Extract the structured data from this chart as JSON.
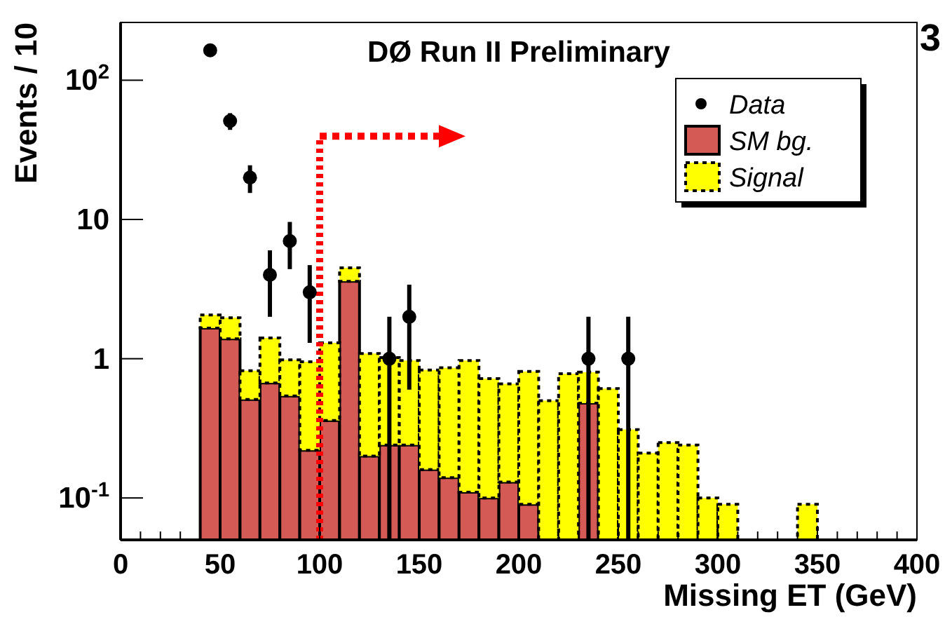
{
  "chart_data": {
    "type": "bar",
    "title": "DØ Run II Preliminary",
    "xlabel": "Missing ET (GeV)",
    "ylabel": "Events / 10",
    "stacked": true,
    "log": "y",
    "legend": "top right",
    "grid": false,
    "x": [
      45,
      55,
      65,
      75,
      85,
      95,
      105,
      115,
      125,
      135,
      145,
      155,
      165,
      175,
      185,
      195,
      205,
      215,
      225,
      235,
      245,
      255,
      265,
      275,
      285,
      295,
      305,
      315,
      325,
      335,
      345
    ],
    "series": [
      {
        "name": "Data",
        "type": "scatter",
        "color": "#000000",
        "marker": "circle",
        "x": [
          45,
          55,
          65,
          75,
          85,
          95,
          135,
          145,
          235,
          255
        ],
        "values": [
          164,
          51,
          20,
          4,
          7,
          3,
          1,
          2,
          1,
          1
        ],
        "errors": [
          13,
          7,
          4.5,
          2,
          2.6,
          1.7,
          [
            0.05,
            2
          ],
          1.4,
          [
            0.05,
            2
          ],
          [
            0.05,
            2
          ]
        ]
      },
      {
        "name": "SM bg.",
        "color": "#d45a55",
        "line_style": "solid",
        "values": [
          1.66,
          1.39,
          0.51,
          0.67,
          0.54,
          0.22,
          0.36,
          3.6,
          0.2,
          0.24,
          0.24,
          0.16,
          0.14,
          0.11,
          0.1,
          0.13,
          0.09,
          null,
          null,
          0.48,
          null,
          null,
          null,
          null,
          null,
          null,
          null,
          null,
          null,
          null,
          null
        ]
      },
      {
        "name": "Signal",
        "color": "#ffff00",
        "line_style": "dotted",
        "values": [
          0.4,
          0.58,
          0.31,
          0.74,
          0.44,
          0.73,
          0.94,
          0.9,
          0.89,
          0.78,
          0.73,
          0.67,
          0.72,
          0.86,
          0.62,
          0.53,
          0.72,
          0.5,
          0.78,
          0.32,
          0.61,
          0.31,
          0.21,
          0.25,
          0.24,
          0.1,
          0.09,
          null,
          null,
          null,
          0.09
        ]
      }
    ],
    "xlim": [
      0,
      400
    ],
    "xticks": [
      0,
      50,
      100,
      150,
      200,
      250,
      300,
      350,
      400
    ],
    "ylim": [
      0.05,
      260
    ],
    "yticks": [
      {
        "value": 0.1,
        "label": "10$^{-1}$"
      },
      1,
      10,
      {
        "value": 100,
        "label": "10$^{2}$"
      }
    ],
    "ref_lines": [
      {
        "axis": "x",
        "value": 100,
        "color": "#ff0000",
        "line_style": "dotted"
      }
    ],
    "annotations": [
      "3"
    ]
  }
}
